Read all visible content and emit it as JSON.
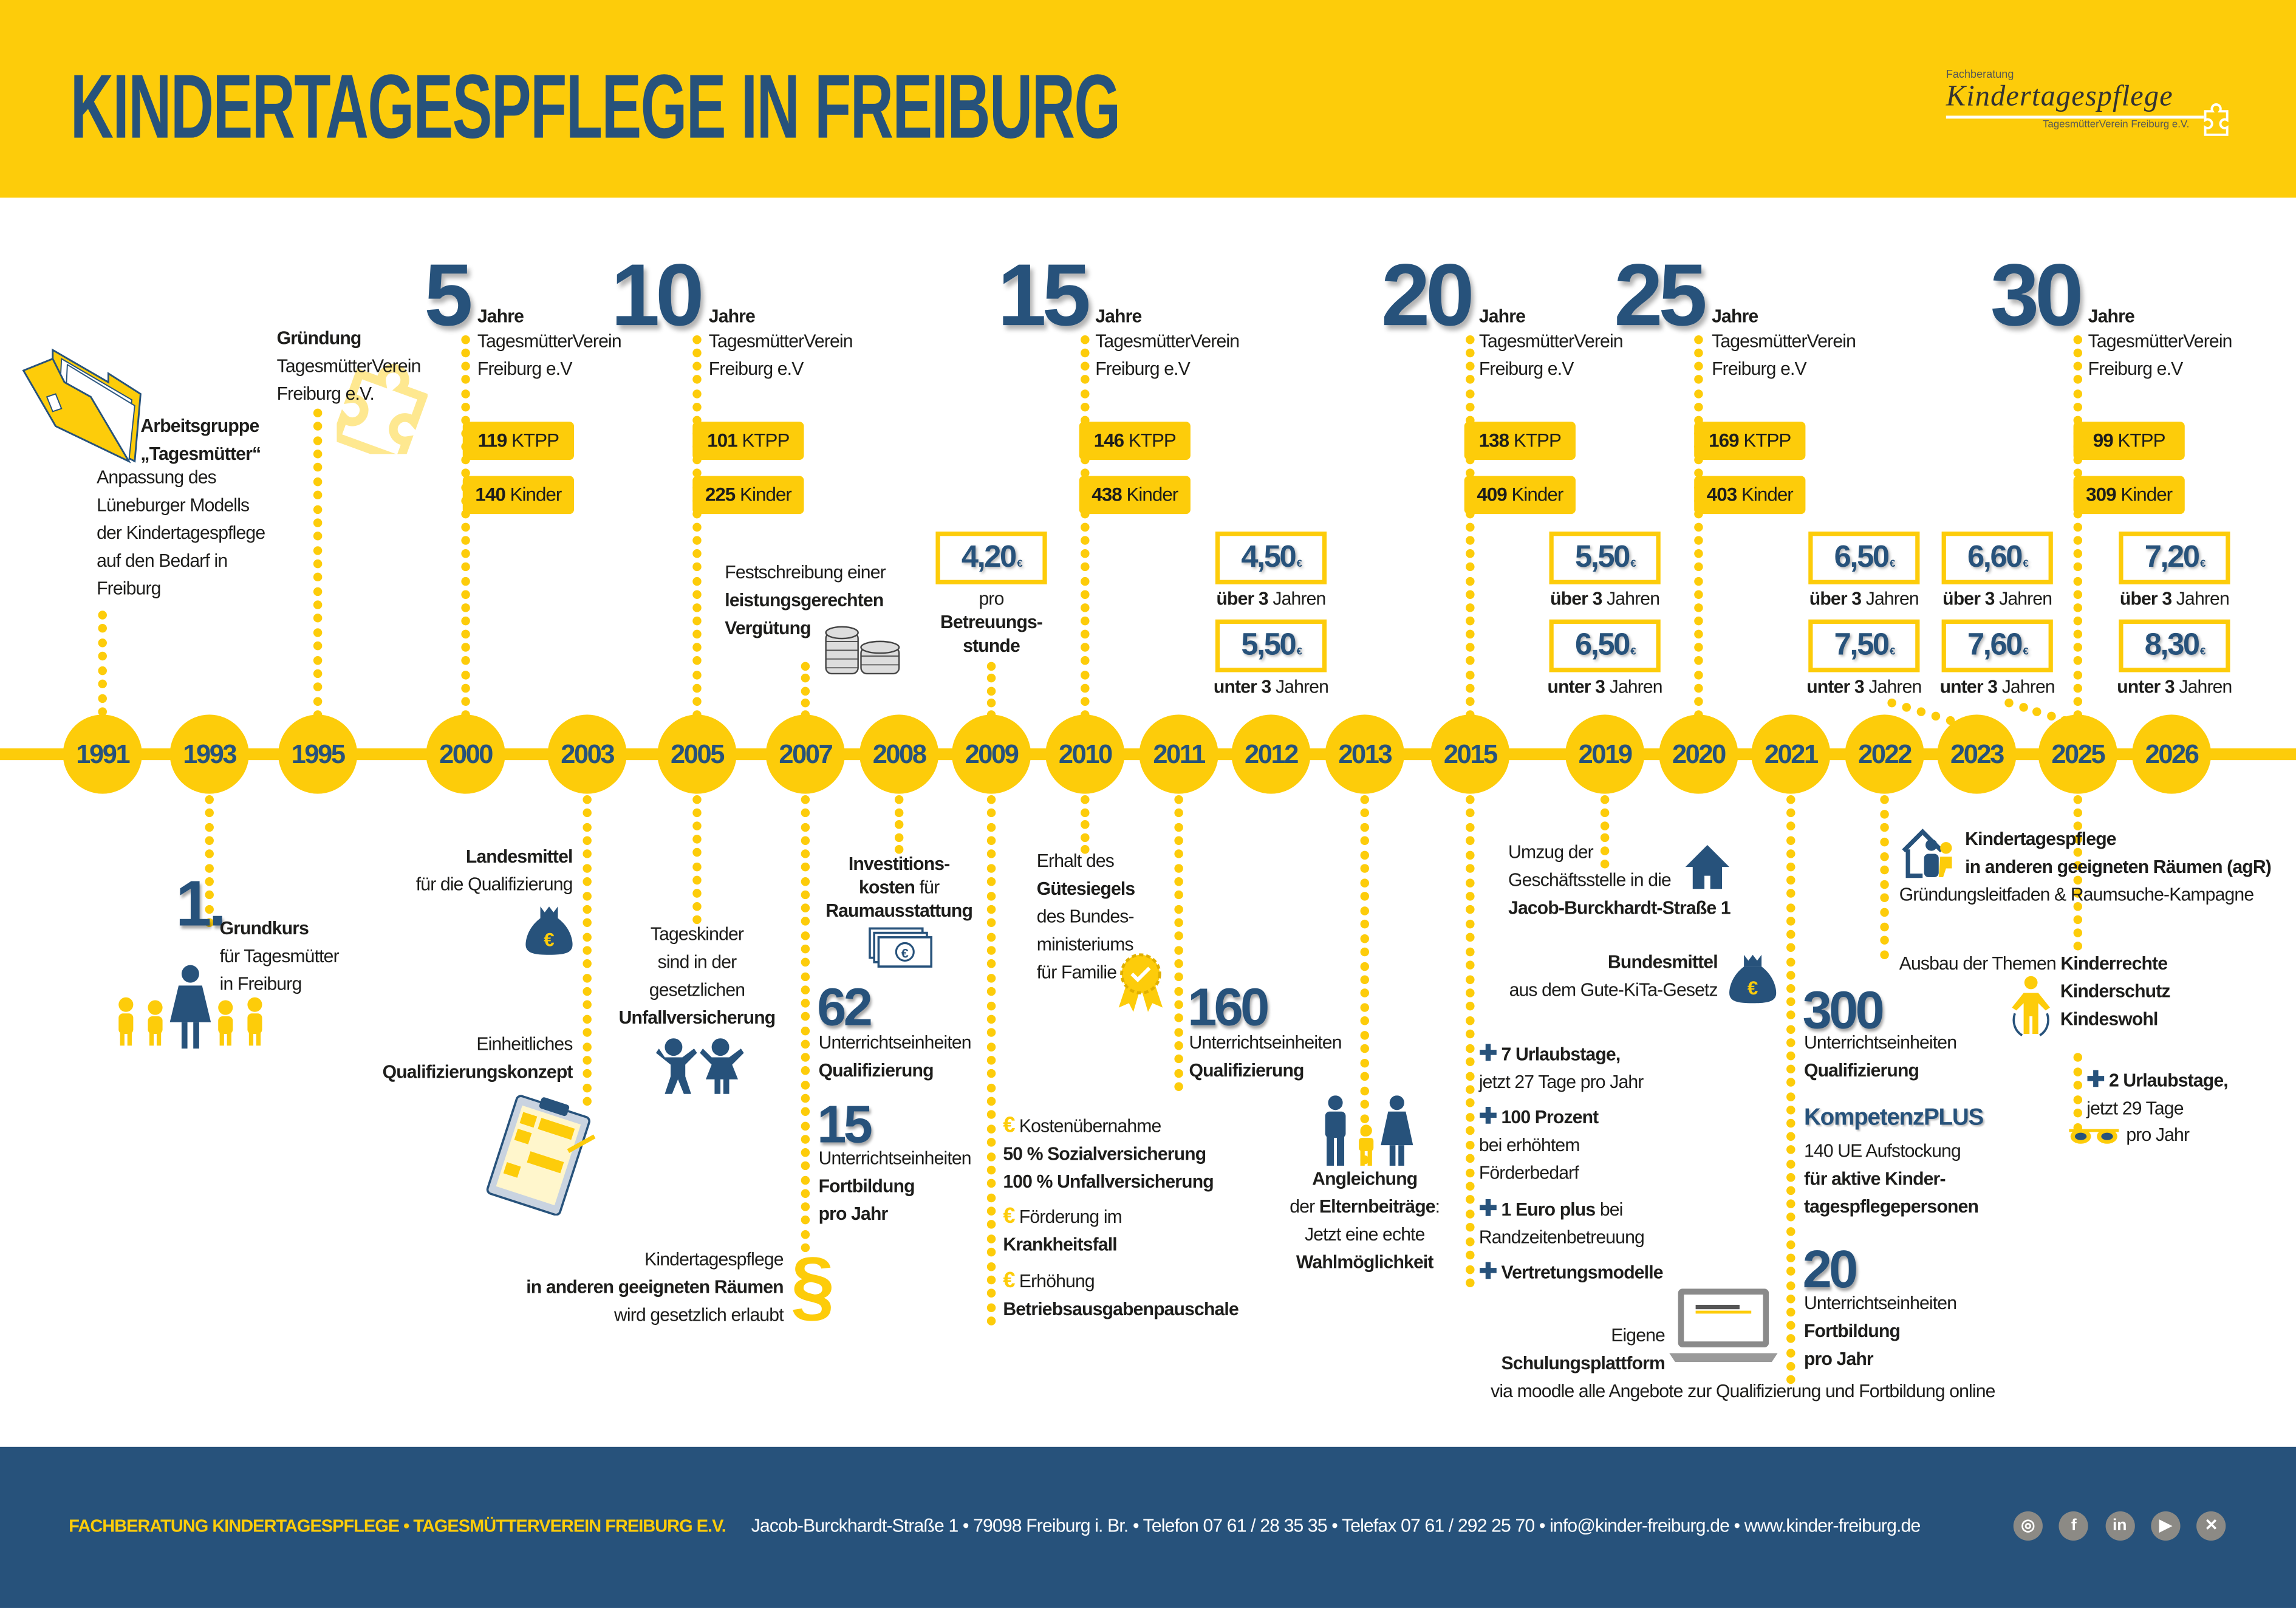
{
  "header": {
    "title": "KINDERTAGESPFLEGE IN FREIBURG",
    "logo": {
      "top": "Fachberatung",
      "main": "Kindertagespflege",
      "sub": "TagesmütterVerein Freiburg e.V."
    }
  },
  "timeline": {
    "years": [
      "1991",
      "1993",
      "1995",
      "2000",
      "2003",
      "2005",
      "2007",
      "2008",
      "2009",
      "2010",
      "2011",
      "2012",
      "2013",
      "2015",
      "2019",
      "2020",
      "2021",
      "2022",
      "2023",
      "2025",
      "2026"
    ]
  },
  "anniversaries": [
    {
      "number": "5",
      "unit": "Jahre",
      "line1": "TagesmütterVerein",
      "line2": "Freiburg e.V",
      "ktpp_count": "119",
      "ktpp_unit": "KTPP",
      "kinder_count": "140",
      "kinder_unit": "Kinder"
    },
    {
      "number": "10",
      "unit": "Jahre",
      "line1": "TagesmütterVerein",
      "line2": "Freiburg e.V",
      "ktpp_count": "101",
      "ktpp_unit": "KTPP",
      "kinder_count": "225",
      "kinder_unit": "Kinder"
    },
    {
      "number": "15",
      "unit": "Jahre",
      "line1": "TagesmütterVerein",
      "line2": "Freiburg e.V",
      "ktpp_count": "146",
      "ktpp_unit": "KTPP",
      "kinder_count": "438",
      "kinder_unit": "Kinder"
    },
    {
      "number": "20",
      "unit": "Jahre",
      "line1": "TagesmütterVerein",
      "line2": "Freiburg e.V",
      "ktpp_count": "138",
      "ktpp_unit": "KTPP",
      "kinder_count": "409",
      "kinder_unit": "Kinder"
    },
    {
      "number": "25",
      "unit": "Jahre",
      "line1": "TagesmütterVerein",
      "line2": "Freiburg e.V",
      "ktpp_count": "169",
      "ktpp_unit": "KTPP",
      "kinder_count": "403",
      "kinder_unit": "Kinder"
    },
    {
      "number": "30",
      "unit": "Jahre",
      "line1": "TagesmütterVerein",
      "line2": "Freiburg e.V",
      "ktpp_count": "99",
      "ktpp_unit": "KTPP",
      "kinder_count": "309",
      "kinder_unit": "Kinder"
    }
  ],
  "prices": [
    {
      "value": "4,20",
      "currency": "€",
      "label": [
        "pro",
        "Betreuungs-",
        "stunde"
      ]
    },
    {
      "value": "4,50",
      "currency": "€",
      "label": [
        [
          "",
          "über 3",
          " Jahren"
        ]
      ]
    },
    {
      "value": "5,50",
      "currency": "€",
      "label": [
        [
          "",
          "unter 3",
          " Jahren"
        ]
      ]
    },
    {
      "value": "5,50",
      "currency": "€",
      "label": [
        [
          "",
          "über 3",
          " Jahren"
        ]
      ]
    },
    {
      "value": "6,50",
      "currency": "€",
      "label": [
        [
          "",
          "unter 3",
          " Jahren"
        ]
      ]
    },
    {
      "value": "6,50",
      "currency": "€",
      "label": [
        [
          "",
          "über 3",
          " Jahren"
        ]
      ]
    },
    {
      "value": "7,50",
      "currency": "€",
      "label": [
        [
          "",
          "unter 3",
          " Jahren"
        ]
      ]
    },
    {
      "value": "6,60",
      "currency": "€",
      "label": [
        [
          "",
          "über 3",
          " Jahren"
        ]
      ]
    },
    {
      "value": "7,60",
      "currency": "€",
      "label": [
        [
          "",
          "unter 3",
          " Jahren"
        ]
      ]
    },
    {
      "value": "7,20",
      "currency": "€",
      "label": [
        [
          "",
          "über 3",
          " Jahren"
        ]
      ]
    },
    {
      "value": "8,30",
      "currency": "€",
      "label": [
        [
          "",
          "unter 3",
          " Jahren"
        ]
      ]
    }
  ],
  "events": {
    "e1991": {
      "title": [
        "Arbeitsgruppe",
        "„Tagesmütter“"
      ],
      "text": [
        "Anpassung des",
        "Lüneburger Modells",
        "der Kindertagespflege",
        "auf den Bedarf in",
        "Freiburg"
      ]
    },
    "e1993": {
      "number": "1.",
      "text": [
        "Grundkurs",
        "für Tagesmütter",
        "in Freiburg"
      ]
    },
    "e1995": {
      "text": [
        "Gründung",
        "TagesmütterVerein",
        "Freiburg e.V."
      ]
    },
    "e2003": {
      "a": [
        "Landesmittel",
        "für die Qualifizierung"
      ],
      "b": [
        "Einheitliches",
        "Qualifizierungskonzept"
      ]
    },
    "e2005": {
      "text": [
        "Tageskinder",
        "sind in der",
        "gesetzlichen",
        "Unfallversicherung"
      ]
    },
    "e2007": {
      "top": [
        "Festschreibung einer",
        "leistungsgerechten",
        "Vergütung"
      ],
      "n1": "62",
      "t1": [
        "Unterrichtseinheiten",
        "Qualifizierung"
      ],
      "n2": "15",
      "t2": [
        "Unterrichtseinheiten",
        "Fortbildung",
        "pro Jahr"
      ],
      "paragraph": "§",
      "law": [
        "Kindertagespflege",
        "in anderen geeigneten Räumen",
        "wird gesetzlich erlaubt"
      ]
    },
    "e2008": {
      "text": [
        "Investitions-",
        [
          "",
          "kosten",
          " für"
        ],
        "Raumausstattung"
      ]
    },
    "e2009": {
      "a": [
        "Kostenübernahme",
        "50 % Sozialversicherung",
        "100 % Unfallversicherung"
      ],
      "b": [
        "Förderung im",
        "Krankheitsfall"
      ],
      "c": [
        "Erhöhung",
        "Betriebsausgabenpauschale"
      ]
    },
    "e2010": {
      "text": [
        "Erhalt des",
        "Gütesiegels",
        "des Bundes-",
        "ministeriums",
        "für Familie"
      ]
    },
    "e2011": {
      "number": "160",
      "text": [
        "Unterrichtseinheiten",
        "Qualifizierung"
      ]
    },
    "e2013": {
      "text": [
        "Angleichung",
        [
          "der ",
          "Elternbeiträge",
          ":"
        ],
        "Jetzt eine echte",
        "Wahlmöglichkeit"
      ]
    },
    "e2015": {
      "a": [
        "7 Urlaubstage,",
        "jetzt 27 Tage pro Jahr"
      ],
      "b": [
        "100 Prozent",
        "bei erhöhtem",
        "Förderbedarf"
      ],
      "c": [
        [
          "",
          "1 Euro plus",
          " bei"
        ],
        "Randzeitenbetreuung"
      ],
      "d": [
        "Vertretungsmodelle"
      ]
    },
    "e2019": {
      "move": [
        "Umzug der",
        "Geschäftsstelle in die",
        "Jacob-Burckhardt-Straße 1"
      ],
      "funds": [
        "Bundesmittel",
        "aus dem Gute-KiTa-Gesetz"
      ],
      "platform": [
        "Eigene",
        "Schulungsplattform"
      ],
      "moodle": [
        "via moodle alle Angebote zur Qualifizierung und Fortbildung online"
      ]
    },
    "e2021": {
      "n1": "300",
      "t1": [
        "Unterrichtseinheiten",
        "Qualifizierung"
      ],
      "kompetenz": "KompetenzPLUS",
      "t2": [
        "140 UE Aufstockung",
        "für aktive Kinder-",
        "tagespflegepersonen"
      ],
      "n2": "20",
      "t3": [
        "Unterrichtseinheiten",
        "Fortbildung",
        "pro Jahr"
      ]
    },
    "e2022": {
      "agr": [
        "Kindertagespflege",
        "in anderen geeigneten Räumen (agR)"
      ],
      "agr_sub": [
        "Gründungsleitfaden & Raumsuche-Kampagne"
      ],
      "themes": [
        [
          "Ausbau der Themen ",
          "Kinderrechte"
        ]
      ],
      "themes2": [
        "Kinderschutz",
        "Kindeswohl"
      ]
    },
    "e2025": {
      "text": [
        "2 Urlaubstage,",
        "jetzt 29 Tage"
      ],
      "tail": [
        "pro Jahr"
      ]
    }
  },
  "footer": {
    "org": "FACHBERATUNG KINDERTAGESPFLEGE • TAGESMÜTTERVEREIN FREIBURG E.V.",
    "address": "Jacob-Burckhardt-Straße 1 • 79098 Freiburg i. Br. • Telefon 07 61 / 28 35 35 • Telefax 07 61 / 292 25 70 • info@kinder-freiburg.de • www.kinder-freiburg.de",
    "social": [
      {
        "name": "instagram-icon",
        "glyph": "◎"
      },
      {
        "name": "facebook-icon",
        "glyph": "f"
      },
      {
        "name": "linkedin-icon",
        "glyph": "in"
      },
      {
        "name": "youtube-icon",
        "glyph": "▶"
      },
      {
        "name": "xing-icon",
        "glyph": "✕"
      }
    ]
  },
  "colors": {
    "yellow": "#fdcc0a",
    "blue": "#27527b",
    "text": "#1d1d1b"
  }
}
